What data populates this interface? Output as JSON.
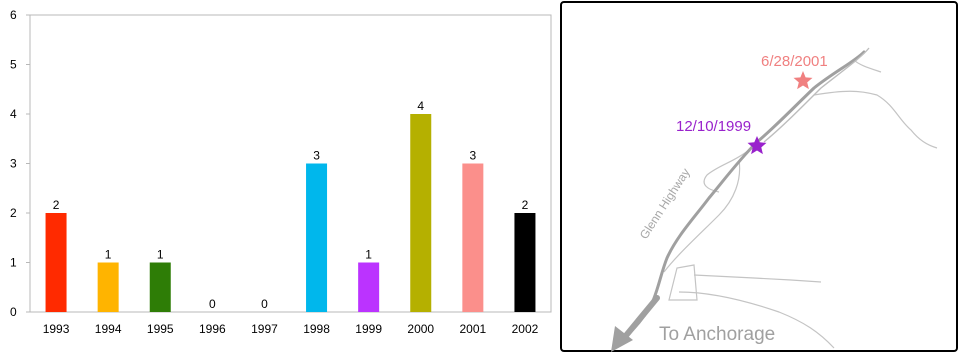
{
  "chart_data": {
    "type": "bar",
    "categories": [
      "1993",
      "1994",
      "1995",
      "1996",
      "1997",
      "1998",
      "1999",
      "2000",
      "2001",
      "2002"
    ],
    "values": [
      2,
      1,
      1,
      0,
      0,
      3,
      1,
      4,
      3,
      2
    ],
    "data_labels": [
      "2",
      "1",
      "1",
      "0",
      "0",
      "3",
      "1",
      "4",
      "3",
      "2"
    ],
    "colors": [
      "#ff2a00",
      "#ffb400",
      "#2e7d06",
      "#888888",
      "#888888",
      "#00b7ec",
      "#bb33ff",
      "#b5b000",
      "#fb8f8b",
      "#000000"
    ],
    "y_ticks": [
      "0",
      "1",
      "2",
      "3",
      "4",
      "5",
      "6"
    ],
    "ylim": [
      0,
      6
    ],
    "grid": false,
    "title": "",
    "xlabel": "",
    "ylabel": ""
  },
  "map": {
    "road_label": "Glenn Highway",
    "destination_label": "To Anchorage",
    "markers": [
      {
        "date": "6/28/2001",
        "color": "#f08080"
      },
      {
        "date": "12/10/1999",
        "color": "#9922cc"
      }
    ]
  }
}
